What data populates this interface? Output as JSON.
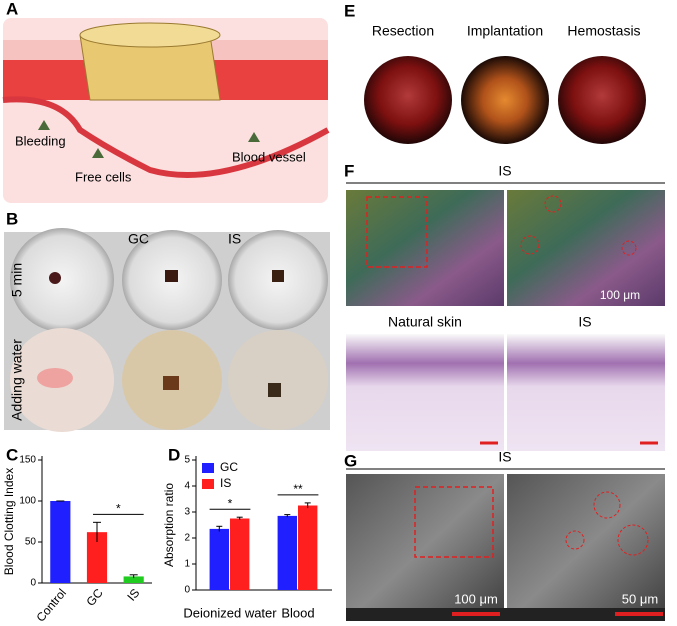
{
  "panel_labels": [
    "A",
    "B",
    "C",
    "D",
    "E",
    "F",
    "G"
  ],
  "panel_a": {
    "labels": [
      "Bleeding",
      "Free cells",
      "Blood vessel"
    ]
  },
  "panel_b": {
    "columns": [
      "GC",
      "IS"
    ],
    "rows": [
      "5 min",
      "Adding water"
    ]
  },
  "panel_e": {
    "columns": [
      "Resection",
      "Implantation",
      "Hemostasis"
    ]
  },
  "panel_f": {
    "title": "IS",
    "scale_bar": "100 μm",
    "columns": [
      "Natural skin",
      "IS"
    ]
  },
  "panel_g": {
    "title": "IS",
    "scale_bars": [
      "100 μm",
      "50 μm"
    ]
  },
  "chart_data": [
    {
      "type": "bar",
      "ylabel": "Blood Clotting Index",
      "categories": [
        "Control",
        "GC",
        "IS"
      ],
      "values": [
        100,
        62,
        8
      ],
      "errors": [
        0,
        12,
        2
      ],
      "colors": [
        "#1f1fff",
        "#ff1f1f",
        "#1fcc1f"
      ],
      "ylim": [
        0,
        150
      ],
      "yticks": [
        0,
        50,
        100,
        150
      ],
      "annotations": [
        "*"
      ]
    },
    {
      "type": "bar",
      "ylabel": "Absorption ratio",
      "categories": [
        "Deionized water",
        "Blood"
      ],
      "series": [
        {
          "name": "GC",
          "color": "#1f1fff",
          "values": [
            2.35,
            2.85
          ],
          "errors": [
            0.1,
            0.05
          ]
        },
        {
          "name": "IS",
          "color": "#ff1f1f",
          "values": [
            2.75,
            3.25
          ],
          "errors": [
            0.05,
            0.1
          ]
        }
      ],
      "ylim": [
        0,
        5
      ],
      "yticks": [
        0,
        1,
        2,
        3,
        4,
        5
      ],
      "legend": "upper left",
      "annotations": [
        "*",
        "**"
      ]
    }
  ]
}
